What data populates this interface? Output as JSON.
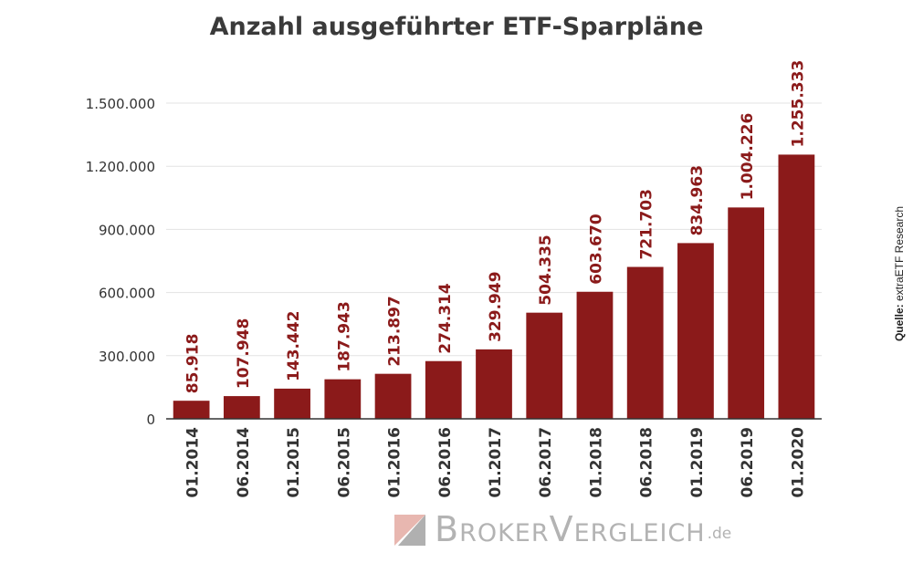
{
  "chart_data": {
    "type": "bar",
    "title": "Anzahl ausgeführter ETF-Sparpläne",
    "xlabel": "",
    "ylabel": "",
    "categories": [
      "01.2014",
      "06.2014",
      "01.2015",
      "06.2015",
      "01.2016",
      "06.2016",
      "01.2017",
      "06.2017",
      "01.2018",
      "06.2018",
      "01.2019",
      "06.2019",
      "01.2020"
    ],
    "values": [
      85918,
      107948,
      143442,
      187943,
      213897,
      274314,
      329949,
      504335,
      603670,
      721703,
      834963,
      1004226,
      1255333
    ],
    "value_labels": [
      "85.918",
      "107.948",
      "143.442",
      "187.943",
      "213.897",
      "274.314",
      "329.949",
      "504.335",
      "603.670",
      "721.703",
      "834.963",
      "1.004.226",
      "1.255.333"
    ],
    "ylim": [
      0,
      1500000
    ],
    "yticks": [
      0,
      300000,
      600000,
      900000,
      1200000,
      1500000
    ],
    "ytick_labels": [
      "0",
      "300.000",
      "600.000",
      "900.000",
      "1.200.000",
      "1.500.000"
    ],
    "grid": true,
    "legend": "none",
    "colors": {
      "bar": "#8b1a1a",
      "label": "#8b1a1a",
      "grid": "#e3e3e3",
      "axis": "#333333",
      "tick_text": "#333333"
    }
  },
  "source": {
    "label": "Quelle:",
    "text": "extraETF Research"
  },
  "logo": {
    "text": "BrokerVergleich",
    "tld": ".de",
    "colors": {
      "mark_light": "#e8b7b0",
      "mark_dark": "#b0b0b0"
    }
  }
}
